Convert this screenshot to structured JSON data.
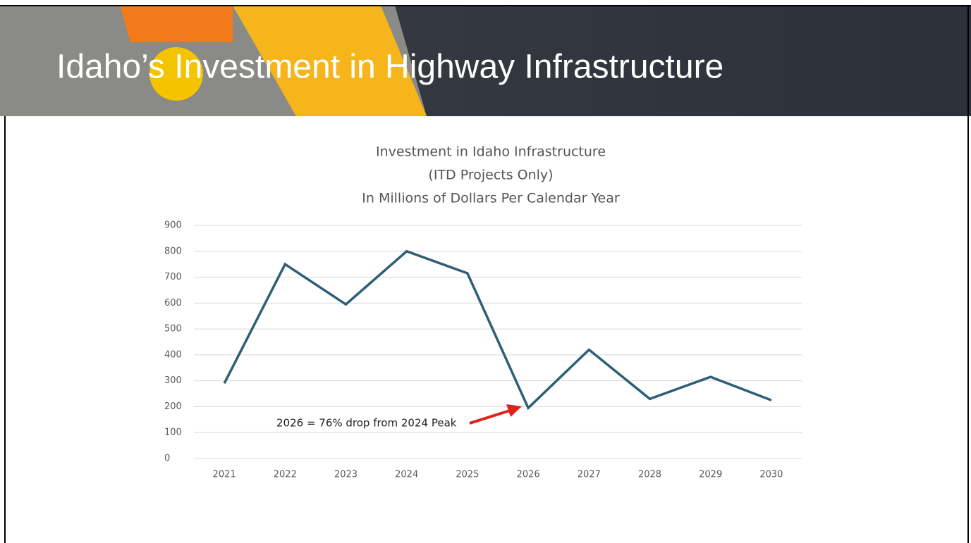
{
  "slide": {
    "title": "Idaho’s Investment in Highway Infrastructure"
  },
  "chart_data": {
    "type": "line",
    "title_lines": [
      "Investment in Idaho Infrastructure",
      "(ITD Projects Only)",
      "In Millions of Dollars Per Calendar Year"
    ],
    "categories": [
      "2021",
      "2022",
      "2023",
      "2024",
      "2025",
      "2026",
      "2027",
      "2028",
      "2029",
      "2030"
    ],
    "values": [
      290,
      750,
      595,
      800,
      715,
      195,
      420,
      230,
      315,
      225
    ],
    "color": "#2e5f78",
    "ylim": [
      0,
      900
    ],
    "yticks": [
      0,
      100,
      200,
      300,
      400,
      500,
      600,
      700,
      800,
      900
    ],
    "grid": true,
    "annotation": "2026 = 76% drop from 2024 Peak"
  }
}
